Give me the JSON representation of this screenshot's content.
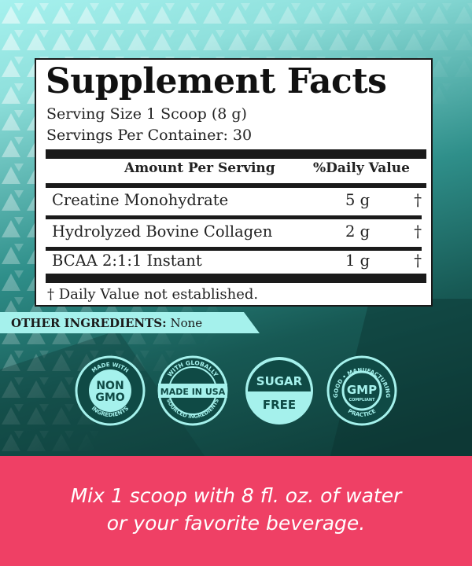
{
  "facts": {
    "title": "Supplement Facts",
    "serving_size": "Serving Size 1 Scoop (8 g)",
    "servings_per_container": "Servings Per Container: 30",
    "header_amount": "Amount Per Serving",
    "header_dv": "%Daily Value",
    "rows": [
      {
        "name": "Creatine Monohydrate",
        "amount": "5 g",
        "dv": "†"
      },
      {
        "name": "Hydrolyzed Bovine Collagen",
        "amount": "2 g",
        "dv": "†"
      },
      {
        "name": "BCAA 2:1:1 Instant",
        "amount": "1 g",
        "dv": "†"
      }
    ],
    "footnote": "† Daily Value not established."
  },
  "other_ingredients": {
    "label": "OTHER INGREDIENTS:",
    "value": "None"
  },
  "badges": [
    {
      "top": "MADE WITH",
      "main1": "NON",
      "main2": "GMO",
      "bottom": "INGREDIENTS"
    },
    {
      "top": "WITH GLOBALLY",
      "main": "MADE IN USA",
      "bottom": "SOURCED INGREDIENTS"
    },
    {
      "main1": "SUGAR",
      "main2": "FREE"
    },
    {
      "top": "GOOD • MANUFACTURING",
      "main": "GMP",
      "sub": "COMPLIANT",
      "bottom": "PRACTICE"
    }
  ],
  "instructions": {
    "line1": "Mix 1 scoop with 8 fl. oz. of water",
    "line2": "or your favorite beverage."
  },
  "colors": {
    "accent_pink": "#ef4065",
    "badge_mint": "#a5f1ec",
    "badge_dark": "#0f4a45"
  }
}
